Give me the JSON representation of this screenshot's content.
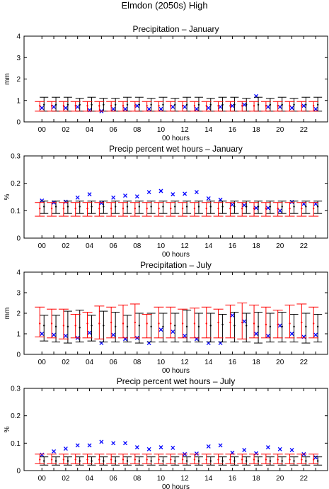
{
  "figure": {
    "suptitle": "Elmdon (2050s) High",
    "colors": {
      "observed": "#0000ff",
      "model_a": "#000000",
      "model_b": "#ff0000",
      "axes": "#000000"
    }
  },
  "chart_data": [
    {
      "type": "errorbar",
      "title": "Precipitation – January",
      "xlabel": "00 hours",
      "ylabel": "mm",
      "ylim": [
        0,
        4
      ],
      "yticks": [
        "0",
        "1",
        "2",
        "3",
        "4"
      ],
      "xticks": [
        "00",
        "02",
        "04",
        "06",
        "08",
        "10",
        "12",
        "14",
        "16",
        "18",
        "20",
        "22"
      ],
      "x": [
        0,
        1,
        2,
        3,
        4,
        5,
        6,
        7,
        8,
        9,
        10,
        11,
        12,
        13,
        14,
        15,
        16,
        17,
        18,
        19,
        20,
        21,
        22,
        23
      ],
      "series": [
        {
          "marker": "x",
          "color": "#0000ff",
          "values": [
            0.65,
            0.7,
            0.65,
            0.7,
            0.55,
            0.5,
            0.6,
            0.6,
            0.75,
            0.6,
            0.6,
            0.7,
            0.7,
            0.6,
            0.65,
            0.7,
            0.75,
            0.8,
            1.2,
            0.7,
            0.7,
            0.65,
            0.75,
            0.6
          ]
        },
        {
          "marker": "errorbar",
          "color": "#000000",
          "mean": [
            0.8,
            0.8,
            0.8,
            0.8,
            0.8,
            0.8,
            0.8,
            0.8,
            0.8,
            0.8,
            0.8,
            0.8,
            0.8,
            0.8,
            0.8,
            0.8,
            0.8,
            0.8,
            0.8,
            0.8,
            0.8,
            0.8,
            0.8,
            0.8
          ],
          "low": [
            0.5,
            0.5,
            0.5,
            0.5,
            0.5,
            0.5,
            0.5,
            0.5,
            0.5,
            0.5,
            0.5,
            0.5,
            0.5,
            0.5,
            0.5,
            0.5,
            0.5,
            0.5,
            0.5,
            0.5,
            0.5,
            0.5,
            0.5,
            0.5
          ],
          "high": [
            1.15,
            1.15,
            1.15,
            1.1,
            1.15,
            1.1,
            1.1,
            1.15,
            1.15,
            1.1,
            1.15,
            1.1,
            1.15,
            1.15,
            1.1,
            1.15,
            1.15,
            1.1,
            1.15,
            1.1,
            1.15,
            1.1,
            1.15,
            1.15
          ]
        },
        {
          "marker": "errorbar",
          "color": "#ff0000",
          "mean": [
            0.75,
            0.75,
            0.75,
            0.75,
            0.75,
            0.75,
            0.75,
            0.75,
            0.75,
            0.75,
            0.75,
            0.75,
            0.75,
            0.75,
            0.75,
            0.75,
            0.75,
            0.75,
            0.75,
            0.75,
            0.75,
            0.75,
            0.75,
            0.75
          ],
          "low": [
            0.5,
            0.5,
            0.5,
            0.5,
            0.5,
            0.5,
            0.5,
            0.5,
            0.5,
            0.5,
            0.5,
            0.5,
            0.5,
            0.5,
            0.5,
            0.5,
            0.5,
            0.5,
            0.5,
            0.5,
            0.5,
            0.5,
            0.5,
            0.5
          ],
          "high": [
            0.95,
            0.95,
            0.95,
            0.95,
            0.95,
            0.95,
            0.95,
            0.95,
            0.95,
            0.95,
            0.95,
            0.95,
            0.95,
            0.95,
            0.95,
            0.95,
            0.95,
            0.95,
            0.95,
            0.95,
            0.95,
            0.95,
            0.95,
            0.95
          ]
        }
      ]
    },
    {
      "type": "errorbar",
      "title": "Precip percent wet hours – January",
      "xlabel": "00 hours",
      "ylabel": "%",
      "ylim": [
        0,
        0.3
      ],
      "yticks": [
        "0",
        "0.1",
        "0.2",
        "0.3"
      ],
      "xticks": [
        "00",
        "02",
        "04",
        "06",
        "08",
        "10",
        "12",
        "14",
        "16",
        "18",
        "20",
        "22"
      ],
      "x": [
        0,
        1,
        2,
        3,
        4,
        5,
        6,
        7,
        8,
        9,
        10,
        11,
        12,
        13,
        14,
        15,
        16,
        17,
        18,
        19,
        20,
        21,
        22,
        23
      ],
      "series": [
        {
          "marker": "x",
          "color": "#0000ff",
          "values": [
            0.137,
            0.13,
            0.133,
            0.148,
            0.16,
            0.128,
            0.148,
            0.155,
            0.152,
            0.168,
            0.172,
            0.16,
            0.162,
            0.168,
            0.145,
            0.14,
            0.122,
            0.12,
            0.11,
            0.11,
            0.1,
            0.132,
            0.125,
            0.125
          ]
        },
        {
          "marker": "errorbar",
          "color": "#000000",
          "mean": [
            0.115,
            0.115,
            0.115,
            0.115,
            0.115,
            0.115,
            0.115,
            0.115,
            0.115,
            0.115,
            0.115,
            0.115,
            0.115,
            0.115,
            0.115,
            0.115,
            0.115,
            0.115,
            0.115,
            0.115,
            0.115,
            0.115,
            0.115,
            0.115
          ],
          "low": [
            0.09,
            0.09,
            0.09,
            0.09,
            0.09,
            0.09,
            0.09,
            0.09,
            0.09,
            0.09,
            0.09,
            0.09,
            0.09,
            0.09,
            0.09,
            0.09,
            0.09,
            0.09,
            0.09,
            0.09,
            0.09,
            0.09,
            0.09,
            0.09
          ],
          "high": [
            0.135,
            0.135,
            0.135,
            0.135,
            0.135,
            0.135,
            0.135,
            0.135,
            0.135,
            0.135,
            0.135,
            0.135,
            0.135,
            0.135,
            0.135,
            0.135,
            0.135,
            0.135,
            0.135,
            0.135,
            0.135,
            0.135,
            0.135,
            0.135
          ]
        },
        {
          "marker": "errorbar",
          "color": "#ff0000",
          "mean": [
            0.108,
            0.108,
            0.108,
            0.108,
            0.108,
            0.108,
            0.108,
            0.108,
            0.108,
            0.108,
            0.108,
            0.108,
            0.108,
            0.108,
            0.108,
            0.108,
            0.108,
            0.108,
            0.108,
            0.108,
            0.108,
            0.108,
            0.108,
            0.108
          ],
          "low": [
            0.08,
            0.08,
            0.08,
            0.08,
            0.08,
            0.08,
            0.08,
            0.08,
            0.08,
            0.08,
            0.08,
            0.08,
            0.08,
            0.08,
            0.08,
            0.08,
            0.08,
            0.08,
            0.08,
            0.08,
            0.08,
            0.08,
            0.08,
            0.08
          ],
          "high": [
            0.13,
            0.13,
            0.13,
            0.13,
            0.13,
            0.13,
            0.13,
            0.13,
            0.13,
            0.13,
            0.13,
            0.13,
            0.13,
            0.13,
            0.13,
            0.13,
            0.13,
            0.13,
            0.13,
            0.13,
            0.13,
            0.13,
            0.13,
            0.13
          ]
        }
      ]
    },
    {
      "type": "errorbar",
      "title": "Precipitation – July",
      "xlabel": "00 hours",
      "ylabel": "mm",
      "ylim": [
        0,
        4
      ],
      "yticks": [
        "0",
        "1",
        "2",
        "3",
        "4"
      ],
      "xticks": [
        "00",
        "02",
        "04",
        "06",
        "08",
        "10",
        "12",
        "14",
        "16",
        "18",
        "20",
        "22"
      ],
      "x": [
        0,
        1,
        2,
        3,
        4,
        5,
        6,
        7,
        8,
        9,
        10,
        11,
        12,
        13,
        14,
        15,
        16,
        17,
        18,
        19,
        20,
        21,
        22,
        23
      ],
      "series": [
        {
          "marker": "x",
          "color": "#0000ff",
          "values": [
            1.0,
            0.95,
            0.9,
            0.8,
            1.05,
            0.55,
            0.95,
            0.75,
            0.8,
            0.55,
            1.2,
            1.1,
            0.9,
            0.75,
            0.55,
            0.55,
            1.9,
            1.6,
            1.0,
            0.9,
            1.4,
            1.0,
            0.85,
            0.95
          ]
        },
        {
          "marker": "errorbar",
          "color": "#000000",
          "mean": [
            1.4,
            1.35,
            1.35,
            1.3,
            1.4,
            1.4,
            1.35,
            1.35,
            1.4,
            1.35,
            1.35,
            1.4,
            1.35,
            1.35,
            1.4,
            1.45,
            1.4,
            1.4,
            1.35,
            1.35,
            1.35,
            1.35,
            1.35,
            1.35
          ],
          "low": [
            0.65,
            0.6,
            0.55,
            0.6,
            0.65,
            0.6,
            0.6,
            0.6,
            0.55,
            0.6,
            0.6,
            0.6,
            0.6,
            0.6,
            0.6,
            0.6,
            0.6,
            0.6,
            0.55,
            0.6,
            0.6,
            0.6,
            0.55,
            0.6
          ],
          "high": [
            1.9,
            1.9,
            2.1,
            2.15,
            1.9,
            2.1,
            2.05,
            1.9,
            2.0,
            2.0,
            2.0,
            2.0,
            2.15,
            2.0,
            2.0,
            1.95,
            2.05,
            2.0,
            2.05,
            2.0,
            2.05,
            1.95,
            2.0,
            1.95
          ]
        },
        {
          "marker": "errorbar",
          "color": "#ff0000",
          "mean": [
            1.5,
            1.5,
            1.4,
            1.4,
            1.5,
            1.5,
            1.55,
            1.5,
            1.55,
            1.5,
            1.5,
            1.5,
            1.5,
            1.5,
            1.5,
            1.55,
            1.55,
            1.55,
            1.5,
            1.45,
            1.45,
            1.5,
            1.55,
            1.5
          ],
          "low": [
            0.85,
            0.8,
            0.75,
            0.8,
            0.8,
            0.75,
            0.8,
            0.8,
            0.8,
            0.8,
            0.8,
            0.8,
            0.8,
            0.8,
            0.8,
            0.8,
            0.8,
            0.75,
            0.8,
            0.8,
            0.8,
            0.8,
            0.8,
            0.8
          ],
          "high": [
            2.3,
            2.2,
            2.2,
            1.95,
            2.05,
            2.35,
            2.3,
            2.4,
            2.45,
            1.95,
            2.3,
            2.3,
            2.2,
            2.25,
            2.3,
            2.2,
            2.4,
            2.5,
            2.4,
            2.3,
            2.15,
            2.4,
            2.45,
            2.3
          ]
        }
      ]
    },
    {
      "type": "errorbar",
      "title": "Precip percent wet hours – July",
      "xlabel": "00 hours",
      "ylabel": "%",
      "ylim": [
        0,
        0.3
      ],
      "yticks": [
        "0",
        "0.1",
        "0.2",
        "0.3"
      ],
      "xticks": [
        "00",
        "02",
        "04",
        "06",
        "08",
        "10",
        "12",
        "14",
        "16",
        "18",
        "20",
        "22"
      ],
      "x": [
        0,
        1,
        2,
        3,
        4,
        5,
        6,
        7,
        8,
        9,
        10,
        11,
        12,
        13,
        14,
        15,
        16,
        17,
        18,
        19,
        20,
        21,
        22,
        23
      ],
      "series": [
        {
          "marker": "x",
          "color": "#0000ff",
          "values": [
            0.058,
            0.07,
            0.08,
            0.092,
            0.092,
            0.105,
            0.1,
            0.1,
            0.085,
            0.078,
            0.085,
            0.083,
            0.06,
            0.062,
            0.088,
            0.092,
            0.065,
            0.075,
            0.063,
            0.085,
            0.078,
            0.075,
            0.06,
            0.048
          ]
        },
        {
          "marker": "errorbar",
          "color": "#000000",
          "mean": [
            0.035,
            0.035,
            0.035,
            0.035,
            0.035,
            0.035,
            0.035,
            0.035,
            0.035,
            0.035,
            0.035,
            0.035,
            0.035,
            0.035,
            0.035,
            0.035,
            0.035,
            0.035,
            0.035,
            0.035,
            0.035,
            0.035,
            0.035,
            0.035
          ],
          "low": [
            0.02,
            0.02,
            0.02,
            0.02,
            0.02,
            0.02,
            0.02,
            0.02,
            0.02,
            0.02,
            0.02,
            0.02,
            0.02,
            0.02,
            0.02,
            0.02,
            0.02,
            0.02,
            0.02,
            0.02,
            0.02,
            0.02,
            0.02,
            0.02
          ],
          "high": [
            0.05,
            0.05,
            0.05,
            0.05,
            0.05,
            0.05,
            0.05,
            0.05,
            0.05,
            0.05,
            0.05,
            0.05,
            0.05,
            0.05,
            0.05,
            0.05,
            0.05,
            0.05,
            0.05,
            0.05,
            0.05,
            0.05,
            0.05,
            0.05
          ]
        },
        {
          "marker": "errorbar",
          "color": "#ff0000",
          "mean": [
            0.04,
            0.04,
            0.04,
            0.04,
            0.04,
            0.04,
            0.04,
            0.04,
            0.04,
            0.04,
            0.04,
            0.04,
            0.04,
            0.04,
            0.04,
            0.04,
            0.04,
            0.04,
            0.04,
            0.04,
            0.04,
            0.04,
            0.04,
            0.04
          ],
          "low": [
            0.025,
            0.025,
            0.025,
            0.025,
            0.025,
            0.025,
            0.025,
            0.025,
            0.025,
            0.025,
            0.025,
            0.025,
            0.025,
            0.025,
            0.025,
            0.025,
            0.025,
            0.025,
            0.025,
            0.025,
            0.025,
            0.025,
            0.025,
            0.025
          ],
          "high": [
            0.06,
            0.06,
            0.06,
            0.06,
            0.06,
            0.06,
            0.06,
            0.06,
            0.06,
            0.06,
            0.06,
            0.06,
            0.06,
            0.06,
            0.06,
            0.06,
            0.06,
            0.06,
            0.06,
            0.06,
            0.06,
            0.06,
            0.06,
            0.06
          ]
        }
      ]
    }
  ]
}
